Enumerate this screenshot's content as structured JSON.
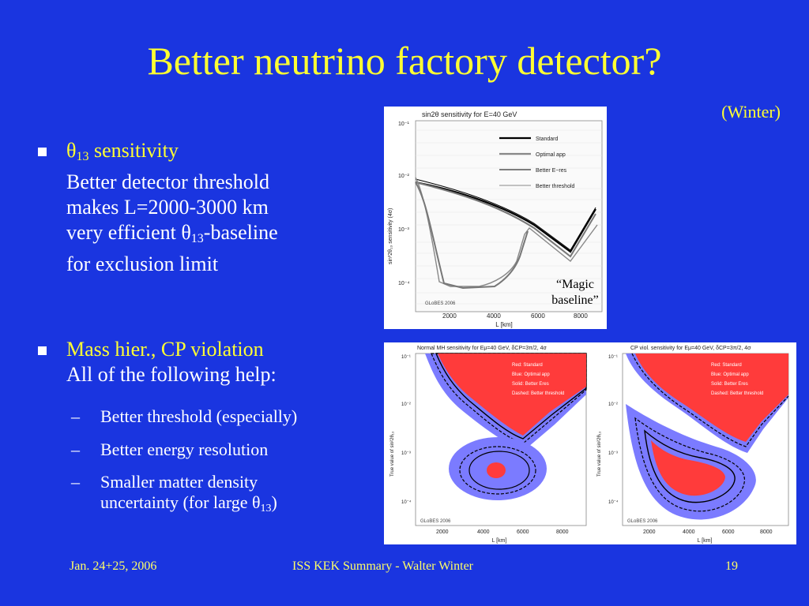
{
  "slide": {
    "title": "Better neutrino factory detector?",
    "author": "(Winter)"
  },
  "bullet1": {
    "heading_sym": "θ",
    "heading_sub": "13",
    "heading_rest": " sensitivity",
    "line1": "Better detector threshold",
    "line2": "makes L=2000-3000 km",
    "line3_pre": "very efficient θ",
    "line3_sub": "13",
    "line3_post": "-baseline",
    "line4": "for exclusion limit"
  },
  "bullet2": {
    "heading": "Mass hier., CP violation",
    "line1": "All of the following help:",
    "items": [
      "Better threshold (especially)",
      "Better energy resolution",
      "Smaller matter density"
    ],
    "item3_line2_pre": "uncertainty (for large θ",
    "item3_line2_sub": "13",
    "item3_line2_post": ")",
    "dash": "–"
  },
  "top_figure": {
    "title_pre": "sin",
    "title_mid": "2θ",
    "title_post": " sensitivity for E",
    "title_tail": "=40 GeV",
    "ylabel": "sin²2θ₁₃ sensitivity (4σ)",
    "xlabel": "L [km]",
    "watermark": "GLoBES 2006",
    "yticks": [
      "10⁻¹",
      "10⁻²",
      "10⁻³",
      "10⁻⁴"
    ],
    "xticks": [
      "2000",
      "4000",
      "6000",
      "8000"
    ],
    "legend": [
      "Standard",
      "Optimal app",
      "Better E−res",
      "Better threshold"
    ],
    "annotation_line1": "“Magic",
    "annotation_line2": "baseline”"
  },
  "left_contour": {
    "title": "Normal MH sensitivity for Eμ=40 GeV, δCP=3π/2, 4σ",
    "ylabel": "True value of sin²2θ₁₃",
    "xlabel": "L [km]",
    "watermark": "GLoBES 2006",
    "yticks": [
      "10⁻¹",
      "10⁻²",
      "10⁻³",
      "10⁻⁴"
    ],
    "xticks": [
      "2000",
      "4000",
      "6000",
      "8000"
    ],
    "legend": [
      "Red: Standard",
      "Blue: Optimal app",
      "Solid: Better Eres",
      "Dashed: Better threshold"
    ]
  },
  "right_contour": {
    "title": "CP viol. sensitivity for Eμ=40 GeV, δCP=3π/2, 4σ",
    "ylabel": "True value of sin²2θ₁₃",
    "xlabel": "L [km]",
    "watermark": "GLoBES 2006",
    "yticks": [
      "10⁻¹",
      "10⁻²",
      "10⁻³",
      "10⁻⁴"
    ],
    "xticks": [
      "2000",
      "4000",
      "6000",
      "8000"
    ],
    "legend": [
      "Red: Standard",
      "Blue: Optimal app",
      "Solid: Better Eres",
      "Dashed: Better threshold"
    ]
  },
  "footer": {
    "date": "Jan. 24+25, 2006",
    "center": "ISS KEK Summary - Walter Winter",
    "page": "19"
  },
  "colors": {
    "background": "#1a35e0",
    "title": "#ffff33",
    "red_region": "#ff3b3b",
    "blue_region": "#7b7bff"
  }
}
